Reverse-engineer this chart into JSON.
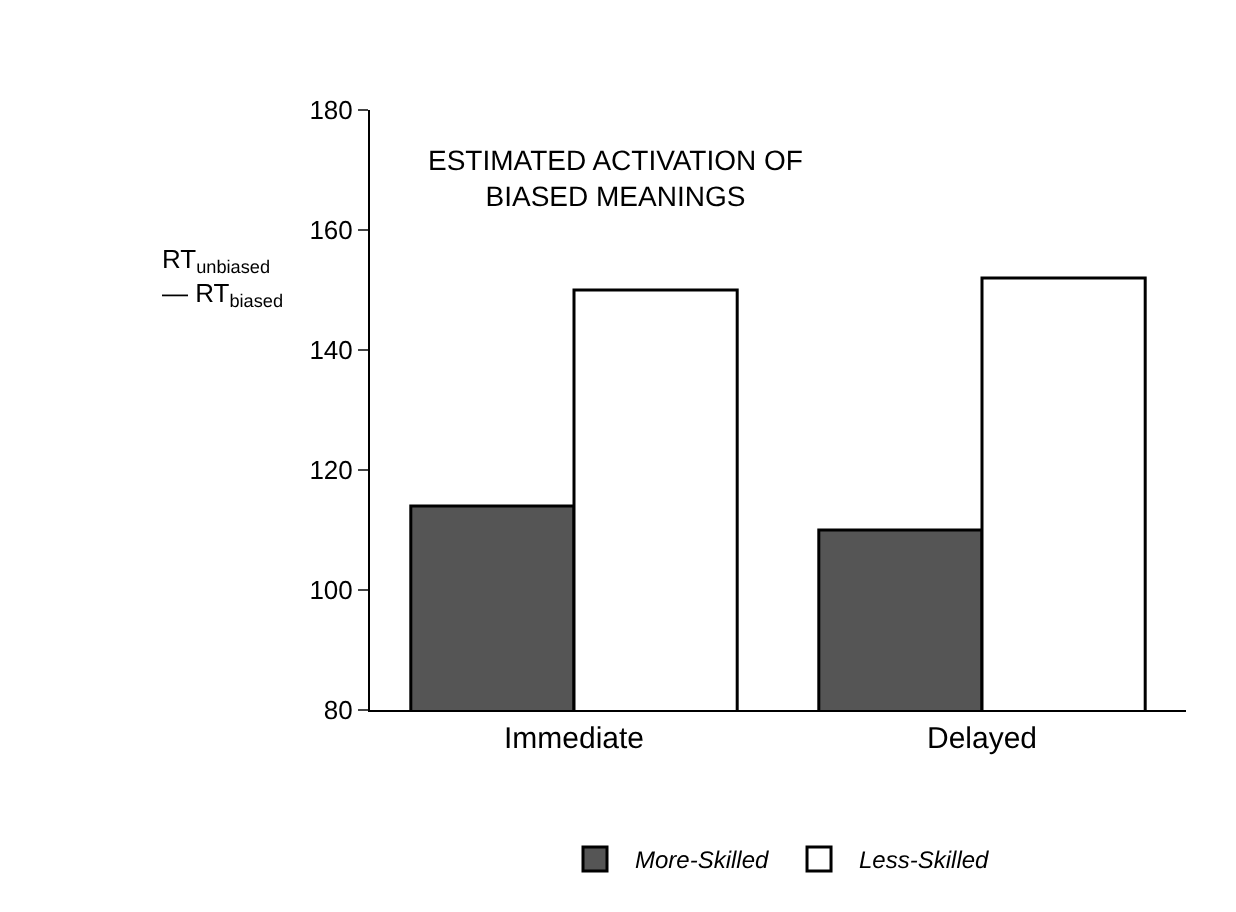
{
  "chart_data": {
    "type": "bar",
    "title": "ESTIMATED ACTIVATION OF\nBIASED MEANINGS",
    "ylabel": "RT$_{unbiased}$\n— RT$_{biased}$",
    "categories": [
      "Immediate",
      "Delayed"
    ],
    "series": [
      {
        "name": "More-Skilled",
        "color": "#555555",
        "values": [
          114,
          110
        ]
      },
      {
        "name": "Less-Skilled",
        "color": "#ffffff",
        "values": [
          150,
          152
        ]
      }
    ],
    "ylim": [
      80,
      180
    ],
    "yticks": [
      80,
      100,
      120,
      140,
      160,
      180
    ],
    "grid": false,
    "legend": "bottom"
  }
}
